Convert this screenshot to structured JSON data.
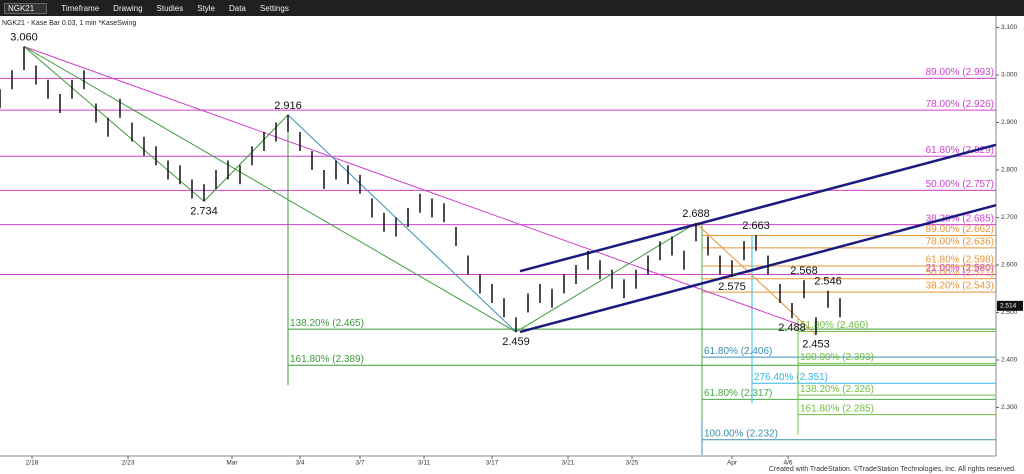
{
  "toolbar": {
    "symbol": "NGK21",
    "items": [
      "Timeframe",
      "Drawing",
      "Studies",
      "Style",
      "Data",
      "Settings"
    ]
  },
  "chart_data": {
    "type": "ohlc",
    "subtitle": "NGK21 - Kase Bar 0.03, 1 min  *KaseSwing",
    "x": [
      0,
      3,
      6,
      9,
      12,
      15,
      18,
      21,
      24,
      27,
      30,
      33,
      36,
      39,
      42,
      45,
      48,
      51,
      54,
      57,
      60,
      63,
      66,
      69,
      72,
      75,
      78,
      81,
      84,
      87,
      90,
      93,
      96,
      99,
      102,
      105,
      108,
      111,
      114,
      117,
      120,
      123,
      126,
      129,
      132,
      135,
      138,
      141,
      144,
      147,
      150,
      153,
      156,
      159,
      162,
      165,
      168,
      171,
      174,
      177,
      180,
      183,
      186,
      189,
      192,
      195,
      198,
      201,
      204,
      207,
      210
    ],
    "high": [
      2.97,
      3.01,
      3.06,
      3.02,
      2.99,
      2.96,
      2.99,
      3.01,
      2.94,
      2.91,
      2.95,
      2.9,
      2.87,
      2.85,
      2.82,
      2.81,
      2.78,
      2.77,
      2.8,
      2.82,
      2.81,
      2.85,
      2.88,
      2.9,
      2.916,
      2.88,
      2.84,
      2.8,
      2.82,
      2.81,
      2.79,
      2.74,
      2.71,
      2.7,
      2.72,
      2.75,
      2.74,
      2.73,
      2.68,
      2.62,
      2.58,
      2.56,
      2.53,
      2.49,
      2.54,
      2.56,
      2.55,
      2.58,
      2.6,
      2.63,
      2.61,
      2.59,
      2.57,
      2.59,
      2.62,
      2.65,
      2.66,
      2.63,
      2.688,
      2.66,
      2.62,
      2.61,
      2.65,
      2.663,
      2.62,
      2.56,
      2.52,
      2.568,
      2.49,
      2.546,
      2.53
    ],
    "low": [
      2.93,
      2.97,
      3.01,
      2.98,
      2.95,
      2.92,
      2.95,
      2.97,
      2.9,
      2.87,
      2.91,
      2.86,
      2.83,
      2.81,
      2.78,
      2.77,
      2.74,
      2.734,
      2.76,
      2.78,
      2.77,
      2.81,
      2.84,
      2.86,
      2.88,
      2.84,
      2.8,
      2.76,
      2.78,
      2.77,
      2.75,
      2.7,
      2.67,
      2.66,
      2.68,
      2.71,
      2.7,
      2.69,
      2.64,
      2.58,
      2.54,
      2.52,
      2.49,
      2.459,
      2.5,
      2.52,
      2.51,
      2.54,
      2.56,
      2.59,
      2.57,
      2.55,
      2.53,
      2.55,
      2.58,
      2.61,
      2.62,
      2.59,
      2.65,
      2.62,
      2.58,
      2.575,
      2.61,
      2.63,
      2.58,
      2.52,
      2.488,
      2.53,
      2.453,
      2.51,
      2.49
    ],
    "color": "#000000",
    "last_price": {
      "value": 2.514,
      "label": "2.514"
    },
    "xlim": [
      0,
      249
    ],
    "ylim": [
      2.2,
      3.12
    ],
    "xticks": [
      {
        "value": 8,
        "label": "2/18"
      },
      {
        "value": 32,
        "label": "2/23"
      },
      {
        "value": 58,
        "label": "Mar"
      },
      {
        "value": 75,
        "label": "3/4"
      },
      {
        "value": 90,
        "label": "3/7"
      },
      {
        "value": 106,
        "label": "3/11"
      },
      {
        "value": 123,
        "label": "3/17"
      },
      {
        "value": 142,
        "label": "3/21"
      },
      {
        "value": 158,
        "label": "3/25"
      },
      {
        "value": 183,
        "label": "Apr"
      },
      {
        "value": 197,
        "label": "4/6"
      }
    ],
    "yticks": [
      {
        "value": 2.3,
        "label": "2.300"
      },
      {
        "value": 2.4,
        "label": "2.400"
      },
      {
        "value": 2.5,
        "label": "2.500"
      },
      {
        "value": 2.6,
        "label": "2.600"
      },
      {
        "value": 2.7,
        "label": "2.700"
      },
      {
        "value": 2.8,
        "label": "2.800"
      },
      {
        "value": 2.9,
        "label": "2.900"
      },
      {
        "value": 3.0,
        "label": "3.000"
      },
      {
        "value": 3.1,
        "label": "3.100"
      }
    ],
    "swings": [
      {
        "label": "3.060",
        "x": 6,
        "value": 3.06
      },
      {
        "label": "2.734",
        "x": 51,
        "value": 2.734
      },
      {
        "label": "2.916",
        "x": 72,
        "value": 2.916
      },
      {
        "label": "2.459",
        "x": 129,
        "value": 2.459
      },
      {
        "label": "2.688",
        "x": 174,
        "value": 2.688
      },
      {
        "label": "2.575",
        "x": 183,
        "value": 2.575
      },
      {
        "label": "2.663",
        "x": 189,
        "value": 2.663
      },
      {
        "label": "2.488",
        "x": 198,
        "value": 2.488
      },
      {
        "label": "2.568",
        "x": 201,
        "value": 2.568
      },
      {
        "label": "2.453",
        "x": 204,
        "value": 2.453
      },
      {
        "label": "2.546",
        "x": 207,
        "value": 2.546
      }
    ],
    "trendlines": [
      {
        "color": "#d040d0",
        "width": 1,
        "x": [
          6,
          200
        ],
        "values": [
          3.06,
          2.474
        ]
      },
      {
        "color": "#3d9b3d",
        "width": 1,
        "x": [
          6,
          51
        ],
        "values": [
          3.06,
          2.734
        ]
      },
      {
        "color": "#3d9b3d",
        "width": 1,
        "x": [
          51,
          72
        ],
        "values": [
          2.734,
          2.916
        ]
      },
      {
        "color": "#3d9b3d",
        "width": 1,
        "x": [
          6,
          129
        ],
        "values": [
          3.06,
          2.459
        ]
      },
      {
        "color": "#3a8fb0",
        "width": 1,
        "x": [
          72,
          129
        ],
        "values": [
          2.916,
          2.459
        ]
      },
      {
        "color": "#3d9b3d",
        "width": 1,
        "x": [
          129,
          174
        ],
        "values": [
          2.459,
          2.688
        ]
      },
      {
        "color": "#e8953a",
        "width": 1,
        "x": [
          174,
          204
        ],
        "values": [
          2.688,
          2.453
        ]
      },
      {
        "color": "#1a1a80",
        "width": 2.5,
        "x": [
          130,
          249
        ],
        "values": [
          2.587,
          2.853
        ]
      },
      {
        "color": "#1a1a80",
        "width": 2.5,
        "x": [
          130,
          249
        ],
        "values": [
          2.459,
          2.726
        ]
      }
    ],
    "fib_sets": [
      {
        "color": "#d040d0",
        "x_start": 0,
        "label_side": "right",
        "levels": [
          {
            "label": "89.00% (2.993)",
            "value": 2.993
          },
          {
            "label": "78.00% (2.926)",
            "value": 2.926
          },
          {
            "label": "61.80% (2.829)",
            "value": 2.829
          },
          {
            "label": "50.00% (2.757)",
            "value": 2.757
          },
          {
            "label": "38.20% (2.685)",
            "value": 2.685
          },
          {
            "label": "21.00% (2.580)",
            "value": 2.58
          }
        ]
      },
      {
        "color": "#e8953a",
        "x_start": 175.5,
        "label_side": "right",
        "levels": [
          {
            "label": "89.00% (2.662)",
            "value": 2.662
          },
          {
            "label": "78.00% (2.636)",
            "value": 2.636
          },
          {
            "label": "61.80% (2.598)",
            "value": 2.598
          },
          {
            "label": "50.00% (2.571)",
            "value": 2.571
          },
          {
            "label": "38.20% (2.543)",
            "value": 2.543
          }
        ]
      },
      {
        "color": "#3d9b3d",
        "x_start": 72,
        "from": 2.916,
        "label_side": "left",
        "levels": [
          {
            "label": "138.20% (2.465)",
            "value": 2.465
          },
          {
            "label": "161.80% (2.389)",
            "value": 2.389
          }
        ]
      },
      {
        "color": "#3a8fb0",
        "x_start": 175.5,
        "from": 2.688,
        "label_side": "left",
        "levels": [
          {
            "label": "61.80% (2.406)",
            "value": 2.406
          },
          {
            "label": "100.00% (2.232)",
            "value": 2.232
          }
        ]
      },
      {
        "color": "#4aa84a",
        "x_start": 175.5,
        "from": 2.688,
        "label_side": "left",
        "levels": [
          {
            "label": "61.80% (2.317)",
            "value": 2.317
          }
        ]
      },
      {
        "color": "#30b8e8",
        "x_start": 188,
        "from": 2.663,
        "label_side": "left",
        "levels": [
          {
            "label": "276.40% (2.351)",
            "value": 2.351
          }
        ]
      },
      {
        "color": "#70c040",
        "x_start": 199.5,
        "from": 2.488,
        "label_side": "left",
        "levels": [
          {
            "label": "61.80% (2.460)",
            "value": 2.46
          },
          {
            "label": "100.00% (2.393)",
            "value": 2.393
          },
          {
            "label": "138.20% (2.326)",
            "value": 2.326
          },
          {
            "label": "161.80% (2.285)",
            "value": 2.285
          }
        ]
      }
    ],
    "copyright": "Created with TradeStation. ©TradeStation Technologies, Inc. All rights reserved."
  }
}
